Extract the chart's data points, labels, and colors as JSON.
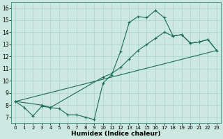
{
  "title": "",
  "xlabel": "Humidex (Indice chaleur)",
  "bg_color": "#cce8e0",
  "grid_color": "#aad4c8",
  "line_color": "#1a6b5a",
  "xlim": [
    -0.5,
    23.5
  ],
  "ylim": [
    6.5,
    16.5
  ],
  "xticks": [
    0,
    1,
    2,
    3,
    4,
    5,
    6,
    7,
    8,
    9,
    10,
    11,
    12,
    13,
    14,
    15,
    16,
    17,
    18,
    19,
    20,
    21,
    22,
    23
  ],
  "yticks": [
    7,
    8,
    9,
    10,
    11,
    12,
    13,
    14,
    15,
    16
  ],
  "line1_x": [
    0,
    1,
    2,
    3,
    4,
    5,
    6,
    7,
    8,
    9,
    10,
    11,
    12,
    13,
    14,
    15,
    16,
    17,
    18,
    19,
    20,
    21,
    22,
    23
  ],
  "line1_y": [
    8.3,
    7.8,
    7.1,
    7.9,
    7.8,
    7.7,
    7.2,
    7.2,
    7.0,
    6.8,
    9.8,
    10.5,
    12.4,
    14.8,
    15.3,
    15.2,
    15.8,
    15.2,
    13.7,
    13.8,
    13.1,
    13.2,
    13.4,
    12.5
  ],
  "line2_x": [
    0,
    3,
    4,
    10,
    11,
    12,
    13,
    14,
    15,
    16,
    17,
    18,
    19,
    20,
    21,
    22,
    23
  ],
  "line2_y": [
    8.3,
    8.0,
    7.8,
    10.3,
    10.6,
    11.1,
    11.8,
    12.5,
    13.0,
    13.5,
    14.0,
    13.7,
    13.8,
    13.1,
    13.2,
    13.4,
    12.5
  ],
  "line3_x": [
    0,
    23
  ],
  "line3_y": [
    8.3,
    12.5
  ]
}
